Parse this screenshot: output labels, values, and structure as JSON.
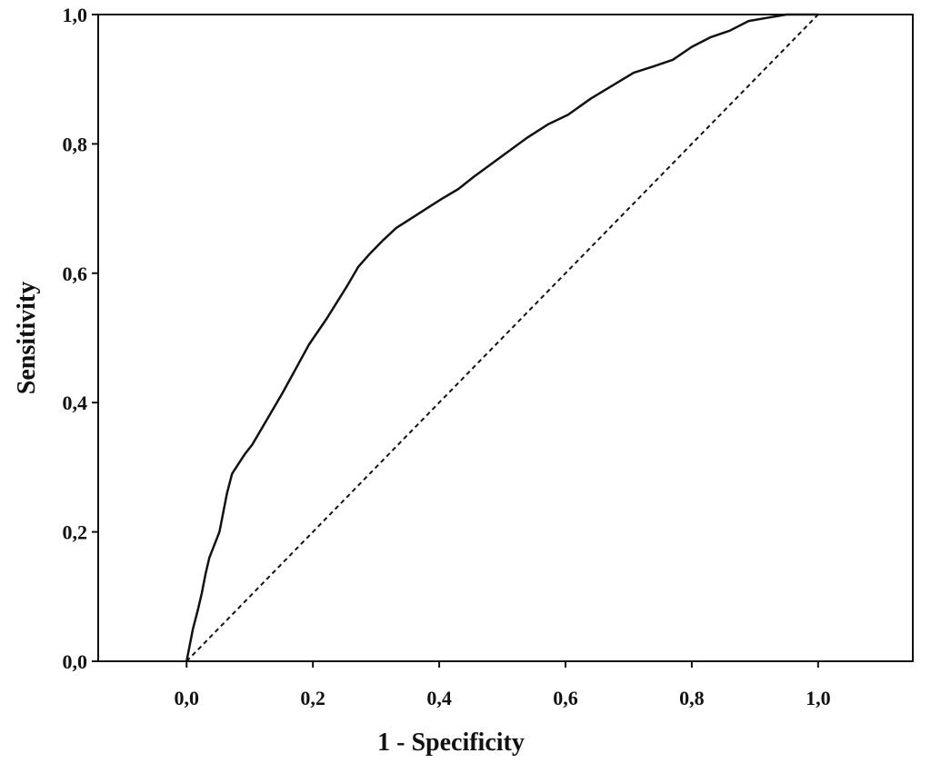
{
  "chart_data": {
    "type": "line",
    "title": "",
    "xlabel": "1 - Specificity",
    "ylabel": "Sensitivity",
    "xlim": [
      -0.14,
      1.15
    ],
    "ylim": [
      0,
      1
    ],
    "grid": false,
    "x_ticks": [
      "0,0",
      "0,2",
      "0,4",
      "0,6",
      "0,8",
      "1,0"
    ],
    "x_tick_values": [
      0,
      0.2,
      0.4,
      0.6,
      0.8,
      1.0
    ],
    "y_ticks": [
      "0,0",
      "0,2",
      "0,4",
      "0,6",
      "0,8",
      "1,0"
    ],
    "y_tick_values": [
      0,
      0.2,
      0.4,
      0.6,
      0.8,
      1.0
    ],
    "series": [
      {
        "style": "solid",
        "color": "#111111",
        "x": [
          0.0,
          0.004,
          0.01,
          0.018,
          0.024,
          0.03,
          0.036,
          0.044,
          0.052,
          0.058,
          0.064,
          0.072,
          0.082,
          0.092,
          0.104,
          0.116,
          0.128,
          0.14,
          0.152,
          0.166,
          0.18,
          0.194,
          0.208,
          0.222,
          0.238,
          0.254,
          0.272,
          0.29,
          0.31,
          0.332,
          0.356,
          0.38,
          0.404,
          0.43,
          0.456,
          0.484,
          0.512,
          0.54,
          0.572,
          0.604,
          0.64,
          0.674,
          0.708,
          0.74,
          0.77,
          0.8,
          0.83,
          0.86,
          0.89,
          0.92,
          0.95,
          0.975,
          1.0
        ],
        "y": [
          0.0,
          0.02,
          0.05,
          0.08,
          0.105,
          0.135,
          0.16,
          0.18,
          0.2,
          0.23,
          0.26,
          0.29,
          0.305,
          0.32,
          0.335,
          0.355,
          0.375,
          0.395,
          0.415,
          0.44,
          0.465,
          0.49,
          0.51,
          0.53,
          0.555,
          0.58,
          0.61,
          0.63,
          0.65,
          0.67,
          0.685,
          0.7,
          0.715,
          0.73,
          0.75,
          0.77,
          0.79,
          0.81,
          0.83,
          0.845,
          0.87,
          0.89,
          0.91,
          0.92,
          0.93,
          0.95,
          0.965,
          0.975,
          0.99,
          0.995,
          1.0,
          1.0,
          1.0
        ]
      },
      {
        "style": "dashed",
        "color": "#111111",
        "x": [
          0,
          1
        ],
        "y": [
          0,
          1
        ]
      }
    ]
  }
}
